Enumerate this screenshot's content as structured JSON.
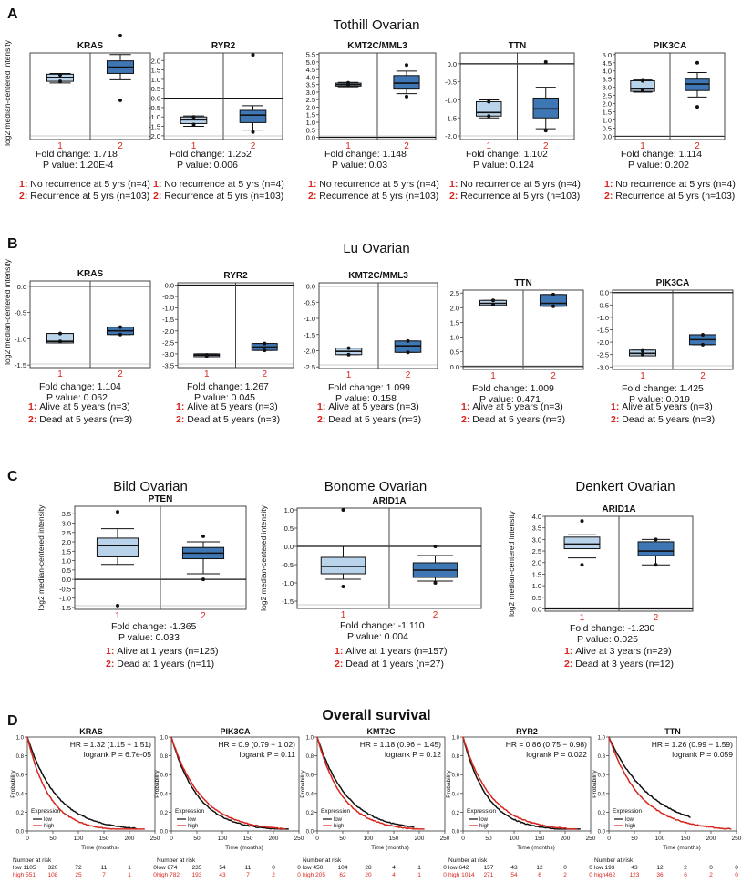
{
  "colors": {
    "box_light": "#b8d3ea",
    "box_dark": "#3f77b4",
    "accent_red": "#d7261e",
    "line_black": "#111111"
  },
  "panels": {
    "A": {
      "letter": "A",
      "title": "Tothill Ovarian",
      "ylabel": "log2 median-centered intensity",
      "legend": [
        "No recurrence at 5 yrs (n=4)",
        "Recurrence at 5 yrs (n=103)"
      ],
      "charts": [
        {
          "name": "KRAS",
          "ylim": [
            0.0,
            5.5
          ],
          "ticks": [],
          "groups": [
            {
              "q1": 3.7,
              "median": 3.95,
              "q3": 4.15,
              "wlo": 3.6,
              "whi": 4.2,
              "out": [
                3.7,
                4.1
              ]
            },
            {
              "q1": 4.2,
              "median": 4.6,
              "q3": 5.0,
              "wlo": 3.8,
              "whi": 5.4,
              "out": [
                2.5,
                6.6
              ]
            }
          ],
          "fold": "Fold change: 1.718",
          "pval": "P value: 1.20E-4"
        },
        {
          "name": "RYR2",
          "ylim": [
            -2.2,
            2.4
          ],
          "ticks": [
            "2.0",
            "1.5",
            "1.0",
            "0.5",
            "0.0",
            "-0.5",
            "-1.0",
            "-1.5",
            "-2.0"
          ],
          "groups": [
            {
              "q1": -1.35,
              "median": -1.15,
              "q3": -1.0,
              "wlo": -1.5,
              "whi": -0.95,
              "out": [
                -1.0,
                -1.4
              ]
            },
            {
              "q1": -1.3,
              "median": -0.9,
              "q3": -0.65,
              "wlo": -1.7,
              "whi": -0.4,
              "out": [
                -1.8,
                2.3
              ]
            }
          ],
          "fold": "Fold change: 1.252",
          "pval": "P value: 0.006"
        },
        {
          "name": "KMT2C/MML3",
          "ylim": [
            -0.15,
            5.6
          ],
          "ticks": [
            "5.5",
            "5.0",
            "4.5",
            "4.0",
            "3.5",
            "3.0",
            "2.5",
            "2.0",
            "1.5",
            "1.0",
            "0.5",
            "0.0"
          ],
          "groups": [
            {
              "q1": 3.4,
              "median": 3.5,
              "q3": 3.6,
              "wlo": 3.35,
              "whi": 3.65,
              "out": [
                3.45,
                3.62
              ]
            },
            {
              "q1": 3.2,
              "median": 3.6,
              "q3": 4.1,
              "wlo": 2.9,
              "whi": 4.4,
              "out": [
                2.7,
                4.8
              ]
            }
          ],
          "fold": "Fold change: 1.148",
          "pval": "P value: 0.03"
        },
        {
          "name": "TTN",
          "ylim": [
            -2.1,
            0.3
          ],
          "ticks": [
            "0.0",
            "-0.5",
            "-1.0",
            "-1.5",
            "-2.0"
          ],
          "groups": [
            {
              "q1": -1.45,
              "median": -1.35,
              "q3": -1.05,
              "wlo": -1.5,
              "whi": -1.0,
              "out": [
                -1.05,
                -1.45
              ]
            },
            {
              "q1": -1.5,
              "median": -1.25,
              "q3": -0.95,
              "wlo": -1.8,
              "whi": -0.65,
              "out": [
                -1.85,
                0.05
              ]
            }
          ],
          "fold": "Fold change: 1.102",
          "pval": "P value: 0.124"
        },
        {
          "name": "PIK3CA",
          "ylim": [
            -0.2,
            5.1
          ],
          "ticks": [
            "5.0",
            "4.5",
            "4.0",
            "3.5",
            "3.0",
            "2.5",
            "2.0",
            "1.5",
            "1.0",
            "0.5",
            "0.0"
          ],
          "groups": [
            {
              "q1": 2.75,
              "median": 2.9,
              "q3": 3.4,
              "wlo": 2.7,
              "whi": 3.45,
              "out": [
                2.8,
                3.4
              ]
            },
            {
              "q1": 2.8,
              "median": 3.2,
              "q3": 3.5,
              "wlo": 2.4,
              "whi": 3.9,
              "out": [
                1.8,
                4.5
              ]
            }
          ],
          "fold": "Fold change: 1.114",
          "pval": "P value: 0.202"
        }
      ]
    },
    "B": {
      "letter": "B",
      "title": "Lu Ovarian",
      "ylabel": "log2 median-centered intensity",
      "legend": [
        "Alive at 5 years (n=3)",
        "Dead at 5 years (n=3)"
      ],
      "charts": [
        {
          "name": "KRAS",
          "ylim": [
            -1.55,
            0.1
          ],
          "ticks": [
            "0.0",
            "-0.5",
            "-1.0",
            "-1.5"
          ],
          "groups": [
            {
              "q1": -1.08,
              "median": -1.05,
              "q3": -0.9,
              "wlo": -1.08,
              "whi": -0.9,
              "out": [
                -0.9,
                -1.05
              ]
            },
            {
              "q1": -0.92,
              "median": -0.85,
              "q3": -0.78,
              "wlo": -0.92,
              "whi": -0.78,
              "out": [
                -0.78,
                -0.92
              ]
            }
          ],
          "fold": "Fold change: 1.104",
          "pval": "P value: 0.062"
        },
        {
          "name": "RYR2",
          "ylim": [
            -3.6,
            0.1
          ],
          "ticks": [
            "0.0",
            "-0.5",
            "-1.0",
            "-1.5",
            "-2.0",
            "-2.5",
            "-3.0",
            "-3.5"
          ],
          "groups": [
            {
              "q1": -3.12,
              "median": -3.05,
              "q3": -3.0,
              "wlo": -3.12,
              "whi": -3.0,
              "out": [
                -3.05,
                -3.1
              ]
            },
            {
              "q1": -2.85,
              "median": -2.7,
              "q3": -2.55,
              "wlo": -2.85,
              "whi": -2.55,
              "out": [
                -2.55,
                -2.85
              ]
            }
          ],
          "fold": "Fold change: 1.267",
          "pval": "P value: 0.045"
        },
        {
          "name": "KMT2C/MML3",
          "ylim": [
            -2.55,
            0.1
          ],
          "ticks": [
            "0.0",
            "-0.5",
            "-1.0",
            "-1.5",
            "-2.0",
            "-2.5"
          ],
          "groups": [
            {
              "q1": -2.12,
              "median": -2.02,
              "q3": -1.92,
              "wlo": -2.12,
              "whi": -1.92,
              "out": [
                -1.92,
                -2.12
              ]
            },
            {
              "q1": -2.05,
              "median": -1.85,
              "q3": -1.7,
              "wlo": -2.05,
              "whi": -1.7,
              "out": [
                -1.7,
                -2.05
              ]
            }
          ],
          "fold": "Fold change: 1.099",
          "pval": "P value: 0.158"
        },
        {
          "name": "TTN",
          "ylim": [
            -0.1,
            2.6
          ],
          "ticks": [
            "2.5",
            "2.0",
            "1.5",
            "1.0",
            "0.5",
            "0.0"
          ],
          "groups": [
            {
              "q1": 2.08,
              "median": 2.15,
              "q3": 2.25,
              "wlo": 2.08,
              "whi": 2.25,
              "out": [
                2.25,
                2.1
              ]
            },
            {
              "q1": 2.05,
              "median": 2.15,
              "q3": 2.45,
              "wlo": 2.05,
              "whi": 2.45,
              "out": [
                2.45,
                2.05
              ]
            }
          ],
          "fold": "Fold change: 1.009",
          "pval": "P value: 0.471"
        },
        {
          "name": "PIK3CA",
          "ylim": [
            -3.1,
            0.1
          ],
          "ticks": [
            "0.0",
            "-0.5",
            "-1.0",
            "-1.5",
            "-2.0",
            "-2.5",
            "-3.0"
          ],
          "groups": [
            {
              "q1": -2.55,
              "median": -2.45,
              "q3": -2.32,
              "wlo": -2.55,
              "whi": -2.32,
              "out": [
                -2.35,
                -2.5
              ]
            },
            {
              "q1": -2.1,
              "median": -1.9,
              "q3": -1.7,
              "wlo": -2.1,
              "whi": -1.7,
              "out": [
                -1.7,
                -2.1
              ]
            }
          ],
          "fold": "Fold change: 1.425",
          "pval": "P value: 0.019"
        }
      ]
    },
    "C": {
      "letter": "C",
      "ylabel": "log2 median-centered intensity",
      "charts": [
        {
          "title": "Bild Ovarian",
          "name": "PTEN",
          "ylim": [
            -1.6,
            3.9
          ],
          "ticks": [
            "3.5",
            "3.0",
            "2.5",
            "2.0",
            "1.5",
            "1.0",
            "0.5",
            "0.0",
            "-0.5",
            "-1.0",
            "-1.5"
          ],
          "groups": [
            {
              "q1": 1.2,
              "median": 1.8,
              "q3": 2.2,
              "wlo": 0.8,
              "whi": 2.7,
              "out": [
                3.6,
                -1.4
              ]
            },
            {
              "q1": 1.1,
              "median": 1.4,
              "q3": 1.7,
              "wlo": 0.3,
              "whi": 2.0,
              "out": [
                2.3,
                0.0
              ]
            }
          ],
          "fold": "Fold change: -1.365",
          "pval": "P value: 0.033",
          "legend": [
            "Alive at 1 years (n=125)",
            "Dead at 1 years (n=11)"
          ]
        },
        {
          "title": "Bonome Ovarian",
          "name": "ARID1A",
          "ylim": [
            -1.7,
            1.05
          ],
          "ticks": [
            "1.0",
            "0.5",
            "0.0",
            "-0.5",
            "-1.0",
            "-1.5"
          ],
          "groups": [
            {
              "q1": -0.75,
              "median": -0.55,
              "q3": -0.3,
              "wlo": -0.9,
              "whi": 0.0,
              "out": [
                -1.1,
                1.0
              ]
            },
            {
              "q1": -0.85,
              "median": -0.65,
              "q3": -0.45,
              "wlo": -0.95,
              "whi": -0.25,
              "out": [
                -1.0,
                0.0
              ]
            }
          ],
          "fold": "Fold change: -1.110",
          "pval": "P value: 0.004",
          "legend": [
            "Alive at 1 years (n=157)",
            "Dead at 1 years (n=27)"
          ]
        },
        {
          "title": "Denkert Ovarian",
          "name": "ARID1A",
          "ylim": [
            -0.1,
            4.0
          ],
          "ticks": [
            "4.0",
            "3.5",
            "3.0",
            "2.5",
            "2.0",
            "1.5",
            "1.0",
            "0.5",
            "0.0"
          ],
          "groups": [
            {
              "q1": 2.6,
              "median": 2.8,
              "q3": 3.1,
              "wlo": 2.2,
              "whi": 3.2,
              "out": [
                3.8,
                1.9
              ]
            },
            {
              "q1": 2.3,
              "median": 2.5,
              "q3": 2.9,
              "wlo": 1.9,
              "whi": 3.0,
              "out": [
                3.0,
                1.9
              ]
            }
          ],
          "fold": "Fold change: -1.230",
          "pval": "P value: 0.025",
          "legend": [
            "Alive at 3 years (n=29)",
            "Dead at 3 years (n=12)"
          ]
        }
      ]
    },
    "D": {
      "letter": "D",
      "title": "Overall survival",
      "xlabel": "Time (months)",
      "ylabel": "Probability",
      "xticks": [
        "0",
        "50",
        "100",
        "150",
        "200",
        "250"
      ],
      "yticks": [
        "0.0",
        "0.2",
        "0.4",
        "0.6",
        "0.8",
        "1.0"
      ],
      "legend_title": "Expression",
      "legend_low": "low",
      "legend_high": "high",
      "risk_label": "Number at risk",
      "charts": [
        {
          "name": "KRAS",
          "hr": "HR = 1.32 (1.15 − 1.51)",
          "logrank": "logrank P = 6.7e-05",
          "risk_low": [
            "low 1105",
            "320",
            "72",
            "11",
            "1",
            "0"
          ],
          "risk_high": [
            "high 551",
            "108",
            "25",
            "7",
            "1",
            "0"
          ]
        },
        {
          "name": "PIK3CA",
          "hr": "HR = 0.9 (0.79 − 1.02)",
          "logrank": "logrank P = 0.11",
          "risk_low": [
            "low 874",
            "235",
            "54",
            "11",
            "0",
            "0"
          ],
          "risk_high": [
            "high 782",
            "193",
            "43",
            "7",
            "2",
            "0"
          ]
        },
        {
          "name": "KMT2C",
          "hr": "HR = 1.18 (0.96 − 1.45)",
          "logrank": "logrank P = 0.12",
          "risk_low": [
            "low 450",
            "104",
            "28",
            "4",
            "1",
            "0"
          ],
          "risk_high": [
            "high 205",
            "62",
            "20",
            "4",
            "1",
            "0"
          ]
        },
        {
          "name": "RYR2",
          "hr": "HR = 0.86 (0.75 − 0.98)",
          "logrank": "logrank P = 0.022",
          "risk_low": [
            "low 642",
            "157",
            "43",
            "12",
            "0",
            "0"
          ],
          "risk_high": [
            "high 1014",
            "271",
            "54",
            "6",
            "2",
            "0"
          ]
        },
        {
          "name": "TTN",
          "hr": "HR = 1.26 (0.99 − 1.59)",
          "logrank": "logrank P = 0.059",
          "risk_low": [
            "low 193",
            "43",
            "12",
            "2",
            "0",
            "0"
          ],
          "risk_high": [
            "high462",
            "123",
            "36",
            "6",
            "2",
            "0"
          ]
        }
      ]
    }
  },
  "chart_data": [
    {
      "type": "box",
      "title": "Tothill Ovarian",
      "ylabel": "log2 median-centered intensity",
      "genes": [
        "KRAS",
        "RYR2",
        "KMT2C/MML3",
        "TTN",
        "PIK3CA"
      ],
      "fold_change": [
        1.718,
        1.252,
        1.148,
        1.102,
        1.114
      ],
      "p_value": [
        "1.20E-4",
        "0.006",
        "0.03",
        "0.124",
        "0.202"
      ],
      "groups": [
        "No recurrence at 5 yrs (n=4)",
        "Recurrence at 5 yrs (n=103)"
      ]
    },
    {
      "type": "box",
      "title": "Lu Ovarian",
      "ylabel": "log2 median-centered intensity",
      "genes": [
        "KRAS",
        "RYR2",
        "KMT2C/MML3",
        "TTN",
        "PIK3CA"
      ],
      "fold_change": [
        1.104,
        1.267,
        1.099,
        1.009,
        1.425
      ],
      "p_value": [
        "0.062",
        "0.045",
        "0.158",
        "0.471",
        "0.019"
      ],
      "groups": [
        "Alive at 5 years (n=3)",
        "Dead at 5 years (n=3)"
      ]
    },
    {
      "type": "box",
      "titles": [
        "Bild Ovarian",
        "Bonome Ovarian",
        "Denkert Ovarian"
      ],
      "genes": [
        "PTEN",
        "ARID1A",
        "ARID1A"
      ],
      "fold_change": [
        -1.365,
        -1.11,
        -1.23
      ],
      "p_value": [
        "0.033",
        "0.004",
        "0.025"
      ]
    },
    {
      "type": "line",
      "title": "Overall survival",
      "xlabel": "Time (months)",
      "ylabel": "Probability",
      "xlim": [
        0,
        250
      ],
      "ylim": [
        0,
        1
      ],
      "genes": [
        "KRAS",
        "PIK3CA",
        "KMT2C",
        "RYR2",
        "TTN"
      ],
      "hr": [
        1.32,
        0.9,
        1.18,
        0.86,
        1.26
      ],
      "logrank_p": [
        6.7e-05,
        0.11,
        0.12,
        0.022,
        0.059
      ],
      "series": [
        {
          "name": "low",
          "color": "#111111"
        },
        {
          "name": "high",
          "color": "#d7261e"
        }
      ]
    }
  ]
}
